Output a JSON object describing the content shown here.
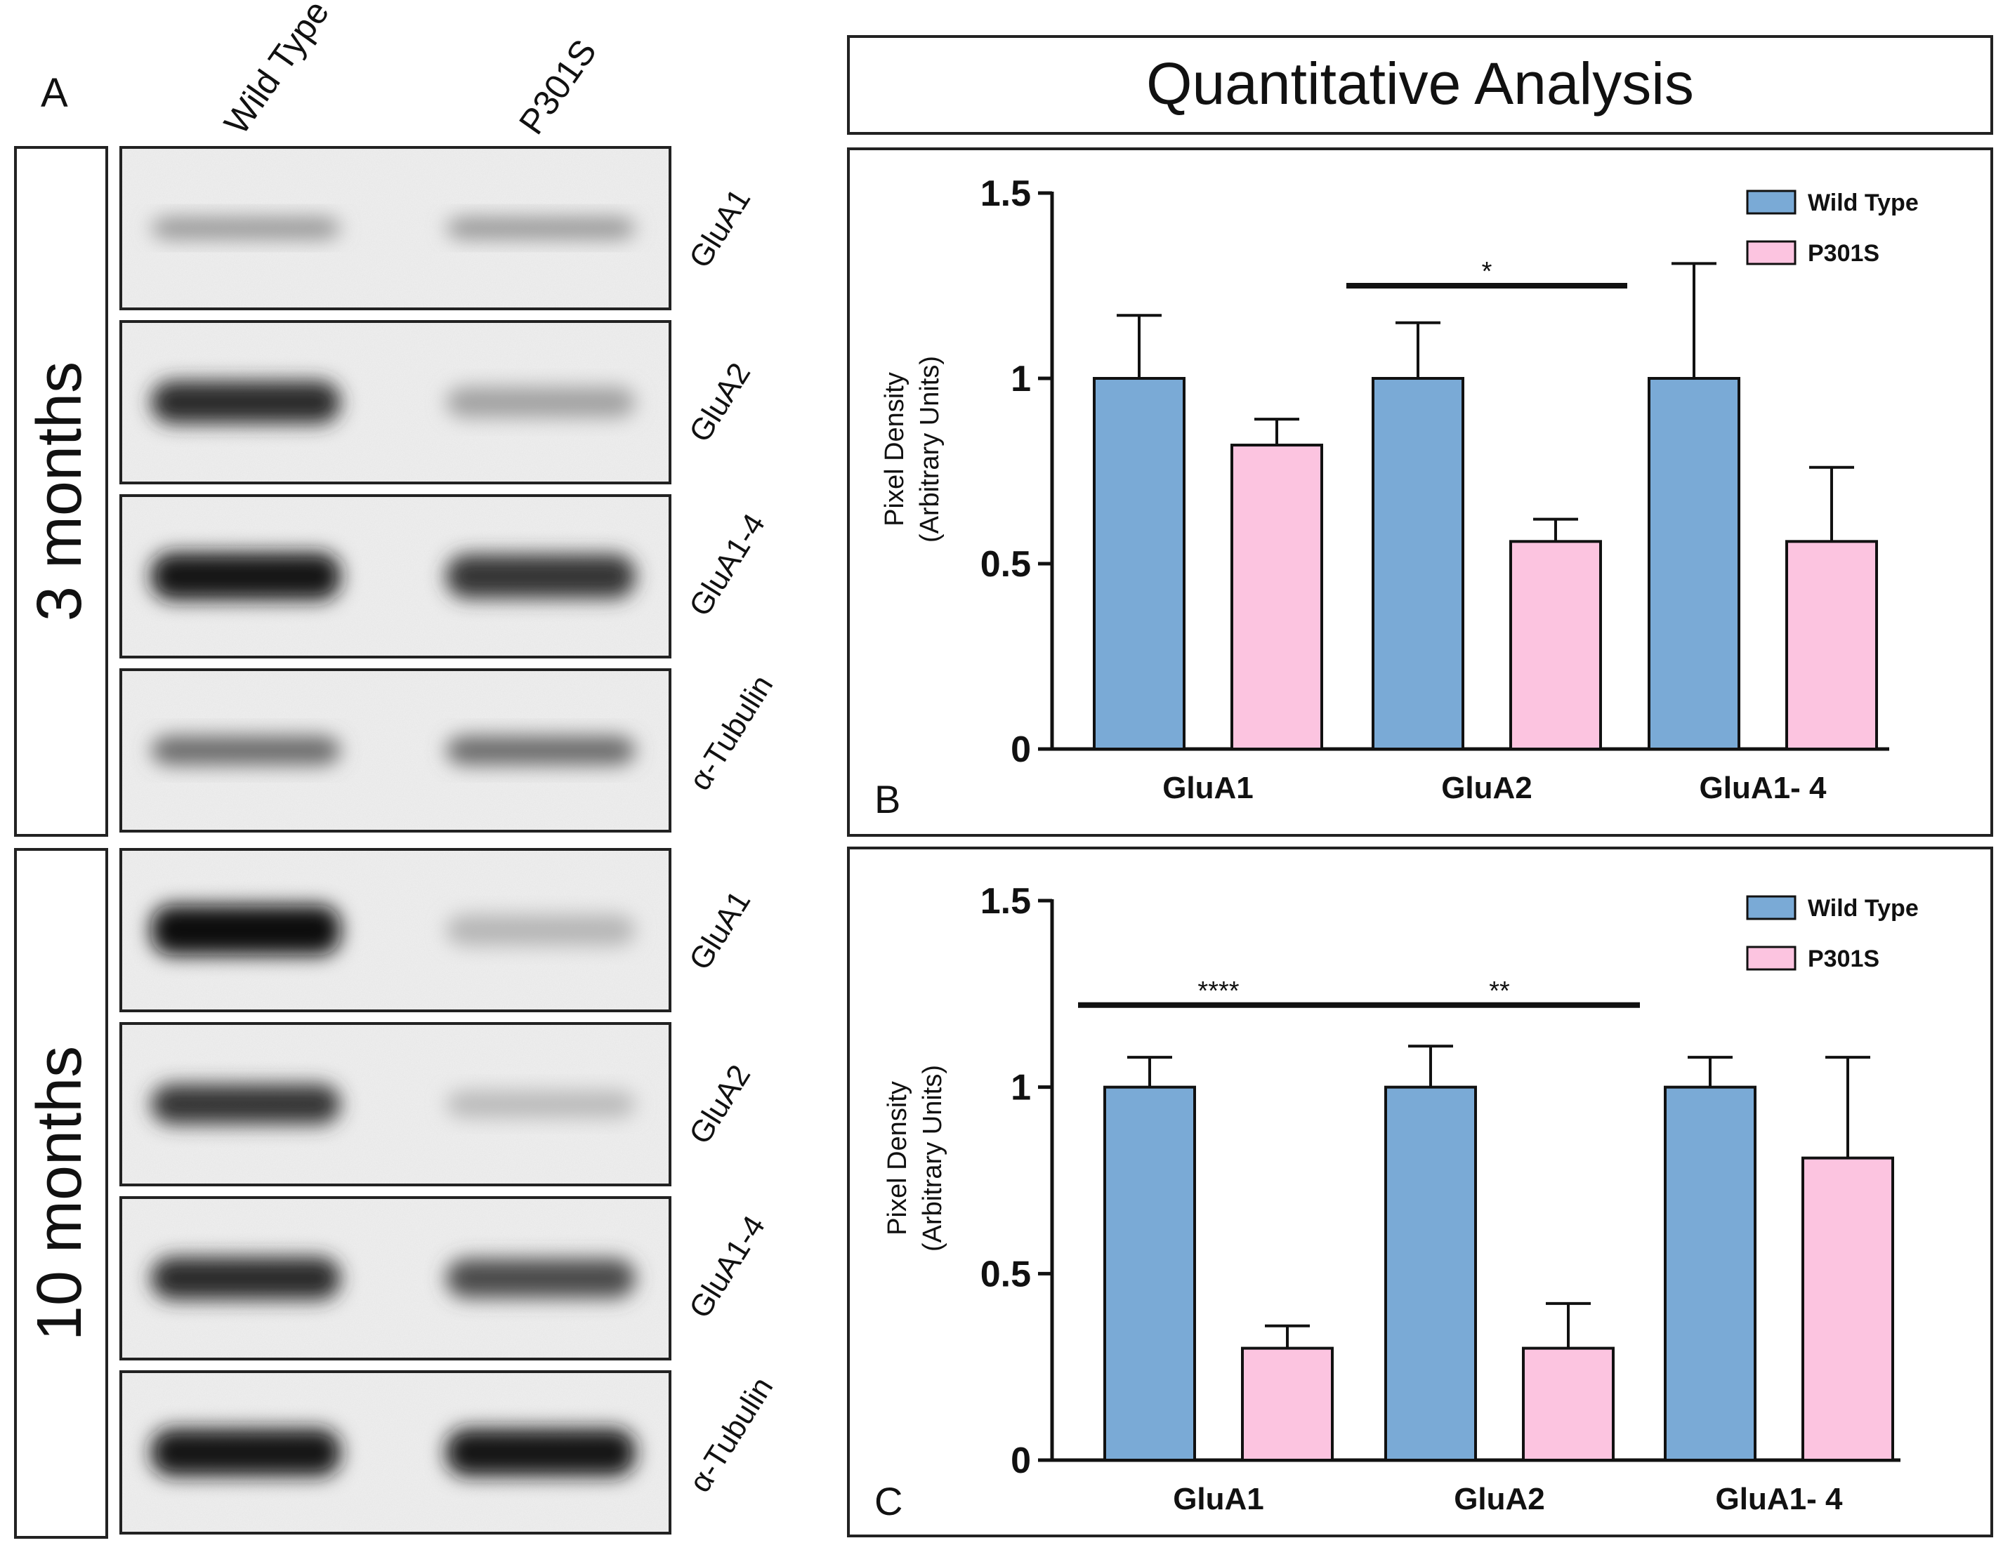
{
  "blot_panel": {
    "label": "A",
    "lane_labels": [
      "Wild Type",
      "P301S"
    ],
    "groups": [
      {
        "label": "3 months",
        "blots": [
          {
            "label": "GluA1",
            "wt_intensity": 0.35,
            "p301s_intensity": 0.35
          },
          {
            "label": "GluA2",
            "wt_intensity": 0.85,
            "p301s_intensity": 0.3
          },
          {
            "label": "GluA1-4",
            "wt_intensity": 0.95,
            "p301s_intensity": 0.8
          },
          {
            "label": "α-Tubulin",
            "wt_intensity": 0.55,
            "p301s_intensity": 0.55
          }
        ]
      },
      {
        "label": "10 months",
        "blots": [
          {
            "label": "GluA1",
            "wt_intensity": 1.0,
            "p301s_intensity": 0.2
          },
          {
            "label": "GluA2",
            "wt_intensity": 0.8,
            "p301s_intensity": 0.18
          },
          {
            "label": "GluA1-4",
            "wt_intensity": 0.85,
            "p301s_intensity": 0.7
          },
          {
            "label": "α-Tubulin",
            "wt_intensity": 0.95,
            "p301s_intensity": 0.95
          }
        ]
      }
    ]
  },
  "header_title": "Quantitative Analysis",
  "colors": {
    "wild_type": "#7AAAD6",
    "p301s": "#FCC4E0"
  },
  "chart_data": [
    {
      "panel_label": "B",
      "type": "bar",
      "categories": [
        "GluA1",
        "GluA2",
        "GluA1- 4"
      ],
      "series": [
        {
          "name": "Wild Type",
          "values": [
            1.0,
            1.0,
            1.0
          ],
          "errors": [
            0.17,
            0.15,
            0.31
          ]
        },
        {
          "name": "P301S",
          "values": [
            0.82,
            0.56,
            0.56
          ],
          "errors": [
            0.07,
            0.06,
            0.2
          ]
        }
      ],
      "ylabel_line1": "Pixel Density",
      "ylabel_line2": "(Arbitrary Units)",
      "ylim": [
        0,
        1.5
      ],
      "yticks": [
        0,
        0.5,
        1,
        1.5
      ],
      "ytick_labels": [
        "0",
        "0.5",
        "1",
        "1.5"
      ],
      "legend_position": "top-right",
      "significance": [
        {
          "category": "GluA2",
          "label": "*",
          "at": 1.25
        }
      ]
    },
    {
      "panel_label": "C",
      "type": "bar",
      "categories": [
        "GluA1",
        "GluA2",
        "GluA1- 4"
      ],
      "series": [
        {
          "name": "Wild Type",
          "values": [
            1.0,
            1.0,
            1.0
          ],
          "errors": [
            0.08,
            0.11,
            0.08
          ]
        },
        {
          "name": "P301S",
          "values": [
            0.3,
            0.3,
            0.81
          ],
          "errors": [
            0.06,
            0.12,
            0.27
          ]
        }
      ],
      "ylabel_line1": "Pixel Density",
      "ylabel_line2": "(Arbitrary Units)",
      "ylim": [
        0,
        1.5
      ],
      "yticks": [
        0,
        0.5,
        1,
        1.5
      ],
      "ytick_labels": [
        "0",
        "0.5",
        "1",
        "1.5"
      ],
      "legend_position": "top-right",
      "significance": [
        {
          "category": "GluA1",
          "label": "****",
          "at": 1.22
        },
        {
          "category": "GluA2",
          "label": "**",
          "at": 1.22
        }
      ]
    }
  ]
}
